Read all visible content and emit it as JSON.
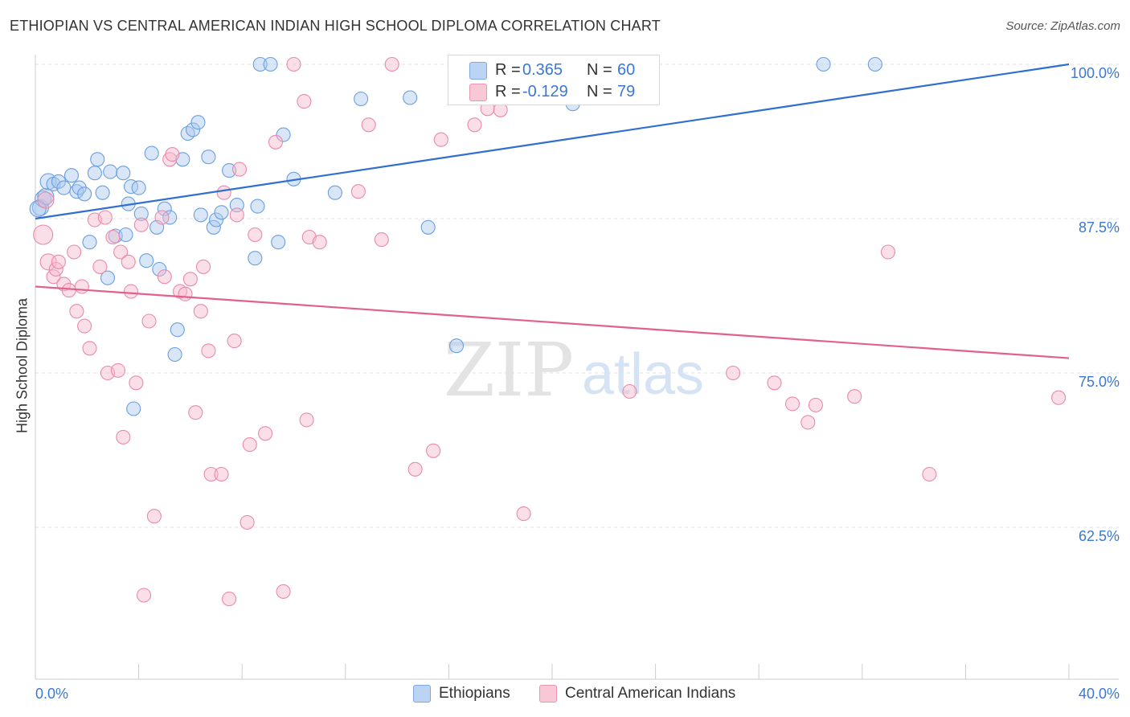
{
  "header": {
    "title": "ETHIOPIAN VS CENTRAL AMERICAN INDIAN HIGH SCHOOL DIPLOMA CORRELATION CHART",
    "source": "Source: ZipAtlas.com"
  },
  "watermark": {
    "left": "ZIP",
    "right": "atlas"
  },
  "legend": {
    "rows": [
      {
        "r_label": "R =",
        "r_value": "0.365",
        "n_label": "N =",
        "n_value": "60",
        "color": "#a9c8f0"
      },
      {
        "r_label": "R =",
        "r_value": "-0.129",
        "n_label": "N =",
        "n_value": "79",
        "color": "#f6b8cb"
      }
    ]
  },
  "chart_data": {
    "type": "scatter",
    "title": "ETHIOPIAN VS CENTRAL AMERICAN INDIAN HIGH SCHOOL DIPLOMA CORRELATION CHART",
    "xlabel": "",
    "ylabel": "High School Diploma",
    "xlim": [
      0,
      40
    ],
    "ylim": [
      50,
      101
    ],
    "x_tick_labels": [
      "0.0%",
      "40.0%"
    ],
    "y_ticks": [
      62.5,
      75.0,
      87.5,
      100.0
    ],
    "y_tick_labels": [
      "62.5%",
      "75.0%",
      "87.5%",
      "100.0%"
    ],
    "grid": true,
    "series": [
      {
        "name": "Ethiopians",
        "color": "#a9c8f0",
        "stroke": "#6a9fe0",
        "line_color": "#2f6fd1",
        "trend": {
          "x": [
            0,
            40
          ],
          "y": [
            87.5,
            100.0
          ]
        },
        "points": [
          [
            0.2,
            88.4
          ],
          [
            0.3,
            89.1
          ],
          [
            0.4,
            89.3
          ],
          [
            0.5,
            90.5
          ],
          [
            0.7,
            90.3
          ],
          [
            0.9,
            90.5
          ],
          [
            1.1,
            90.0
          ],
          [
            1.4,
            91.0
          ],
          [
            1.6,
            89.7
          ],
          [
            1.7,
            90.0
          ],
          [
            1.9,
            89.5
          ],
          [
            2.1,
            85.6
          ],
          [
            2.3,
            91.2
          ],
          [
            2.4,
            92.3
          ],
          [
            2.6,
            89.6
          ],
          [
            2.8,
            82.7
          ],
          [
            2.9,
            91.3
          ],
          [
            3.1,
            86.1
          ],
          [
            3.4,
            91.2
          ],
          [
            3.5,
            86.2
          ],
          [
            3.6,
            88.7
          ],
          [
            3.7,
            90.1
          ],
          [
            3.8,
            72.1
          ],
          [
            4.0,
            90.0
          ],
          [
            4.1,
            87.9
          ],
          [
            4.3,
            84.1
          ],
          [
            4.5,
            92.8
          ],
          [
            4.7,
            86.8
          ],
          [
            4.8,
            83.4
          ],
          [
            5.0,
            88.3
          ],
          [
            5.2,
            87.6
          ],
          [
            5.4,
            76.5
          ],
          [
            5.5,
            78.5
          ],
          [
            5.7,
            92.3
          ],
          [
            5.9,
            94.4
          ],
          [
            6.1,
            94.7
          ],
          [
            6.3,
            95.3
          ],
          [
            6.4,
            87.8
          ],
          [
            6.7,
            92.5
          ],
          [
            6.9,
            86.8
          ],
          [
            7.0,
            87.4
          ],
          [
            7.2,
            88.0
          ],
          [
            7.5,
            91.4
          ],
          [
            7.8,
            88.6
          ],
          [
            8.5,
            84.3
          ],
          [
            8.6,
            88.5
          ],
          [
            8.7,
            100.0
          ],
          [
            9.1,
            100.0
          ],
          [
            9.4,
            85.6
          ],
          [
            9.6,
            94.3
          ],
          [
            10.0,
            90.7
          ],
          [
            11.6,
            89.6
          ],
          [
            12.6,
            97.2
          ],
          [
            14.5,
            97.3
          ],
          [
            15.2,
            86.8
          ],
          [
            16.3,
            77.2
          ],
          [
            20.8,
            96.8
          ],
          [
            30.5,
            100.0
          ],
          [
            32.5,
            100.0
          ],
          [
            0.1,
            88.3
          ]
        ]
      },
      {
        "name": "Central American Indians",
        "color": "#f6b8cb",
        "stroke": "#ea8aa8",
        "line_color": "#e0628c",
        "trend": {
          "x": [
            0,
            40
          ],
          "y": [
            82.0,
            76.2
          ]
        },
        "points": [
          [
            0.3,
            86.2
          ],
          [
            0.4,
            89.0
          ],
          [
            0.5,
            84.0
          ],
          [
            0.7,
            82.8
          ],
          [
            0.8,
            83.4
          ],
          [
            0.9,
            84.0
          ],
          [
            1.1,
            82.2
          ],
          [
            1.3,
            81.7
          ],
          [
            1.5,
            84.8
          ],
          [
            1.6,
            80.0
          ],
          [
            1.8,
            82.0
          ],
          [
            1.9,
            78.8
          ],
          [
            2.1,
            77.0
          ],
          [
            2.3,
            87.4
          ],
          [
            2.5,
            83.6
          ],
          [
            2.7,
            87.6
          ],
          [
            2.8,
            75.0
          ],
          [
            3.0,
            86.0
          ],
          [
            3.2,
            75.2
          ],
          [
            3.3,
            84.8
          ],
          [
            3.4,
            69.8
          ],
          [
            3.6,
            84.0
          ],
          [
            3.7,
            81.6
          ],
          [
            3.9,
            74.2
          ],
          [
            4.1,
            87.0
          ],
          [
            4.2,
            57.0
          ],
          [
            4.4,
            79.2
          ],
          [
            4.6,
            63.4
          ],
          [
            4.9,
            87.6
          ],
          [
            5.0,
            82.8
          ],
          [
            5.2,
            92.3
          ],
          [
            5.3,
            92.7
          ],
          [
            5.6,
            81.6
          ],
          [
            5.8,
            81.4
          ],
          [
            6.0,
            82.6
          ],
          [
            6.2,
            71.8
          ],
          [
            6.4,
            80.0
          ],
          [
            6.5,
            83.6
          ],
          [
            6.7,
            76.8
          ],
          [
            6.8,
            66.8
          ],
          [
            7.2,
            66.8
          ],
          [
            7.3,
            89.6
          ],
          [
            7.5,
            56.7
          ],
          [
            7.7,
            77.6
          ],
          [
            7.8,
            87.8
          ],
          [
            7.9,
            91.5
          ],
          [
            8.2,
            62.9
          ],
          [
            8.3,
            69.2
          ],
          [
            8.5,
            86.2
          ],
          [
            8.9,
            70.1
          ],
          [
            9.3,
            93.7
          ],
          [
            9.6,
            57.3
          ],
          [
            10.0,
            100.0
          ],
          [
            10.4,
            97.0
          ],
          [
            10.5,
            71.2
          ],
          [
            10.6,
            86.0
          ],
          [
            11.0,
            85.6
          ],
          [
            12.5,
            89.7
          ],
          [
            12.9,
            95.1
          ],
          [
            13.4,
            85.8
          ],
          [
            13.8,
            100.0
          ],
          [
            14.7,
            67.2
          ],
          [
            15.4,
            68.7
          ],
          [
            15.7,
            93.9
          ],
          [
            17.0,
            95.1
          ],
          [
            17.5,
            96.4
          ],
          [
            18.0,
            96.3
          ],
          [
            18.9,
            63.6
          ],
          [
            22.5,
            100.0
          ],
          [
            23.0,
            73.5
          ],
          [
            27.0,
            75.0
          ],
          [
            28.6,
            74.2
          ],
          [
            29.3,
            72.5
          ],
          [
            29.9,
            71.0
          ],
          [
            30.2,
            72.4
          ],
          [
            31.7,
            73.1
          ],
          [
            33.0,
            84.8
          ],
          [
            34.6,
            66.8
          ],
          [
            39.6,
            73.0
          ]
        ]
      }
    ]
  },
  "bottom_legend": {
    "items": [
      {
        "label": "Ethiopians",
        "color": "#a9c8f0"
      },
      {
        "label": "Central American Indians",
        "color": "#f6b8cb"
      }
    ]
  },
  "colors": {
    "axis_text": "#3a78d4",
    "grid": "#e2e2e2",
    "axis": "#cccccc"
  }
}
